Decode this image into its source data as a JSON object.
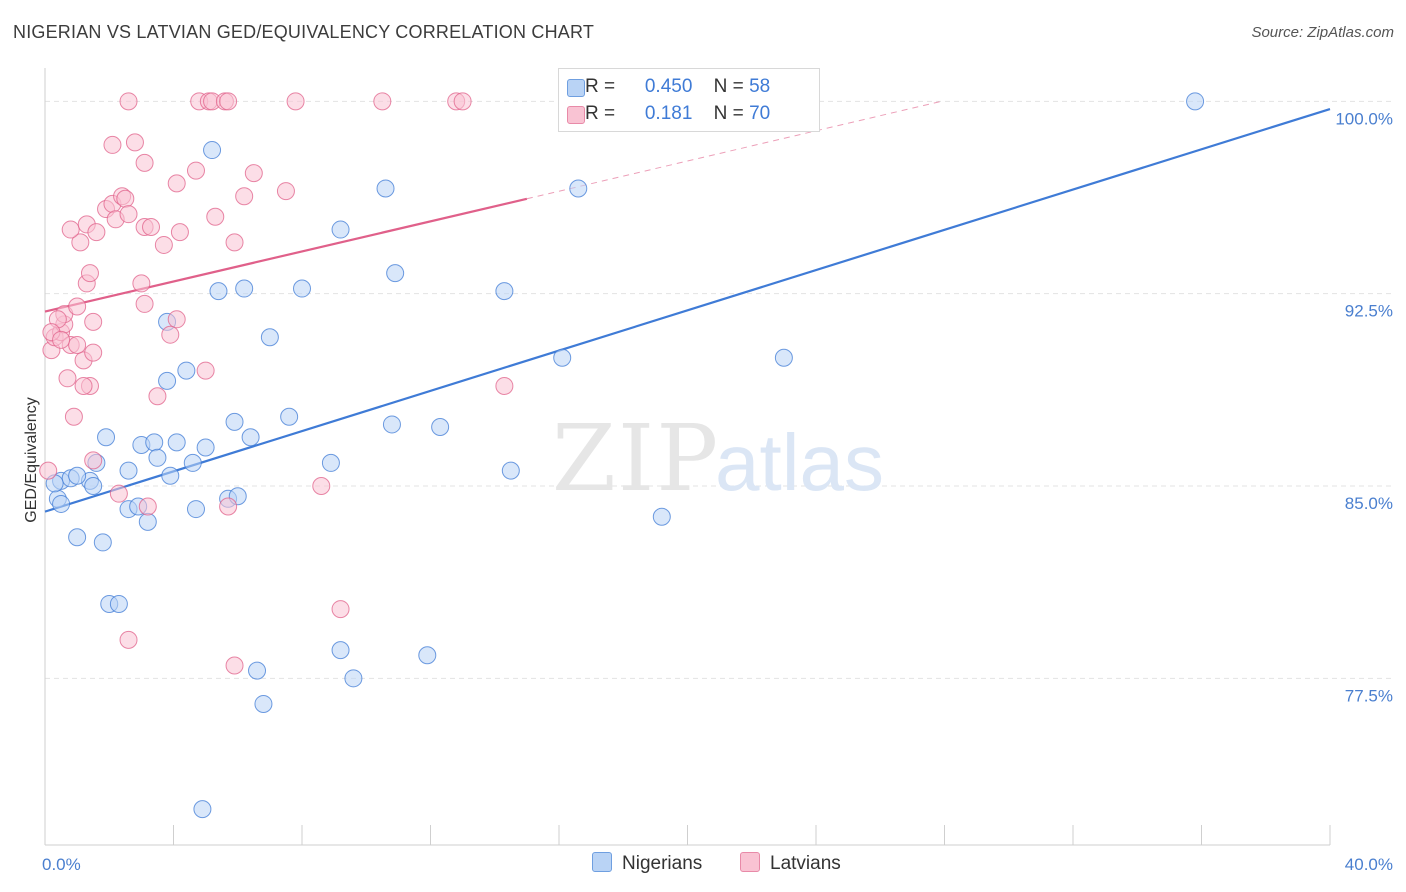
{
  "title": "NIGERIAN VS LATVIAN GED/EQUIVALENCY CORRELATION CHART",
  "source": "Source: ZipAtlas.com",
  "watermark": {
    "zip": "ZIP",
    "atlas": "atlas"
  },
  "legend": {
    "r_label": "R =",
    "n_label": "N =",
    "rows": [
      {
        "name": "Nigerians",
        "r": "0.450",
        "n": "58",
        "fill": "#b9d3f5",
        "stroke": "#6f9fe0"
      },
      {
        "name": "Latvians",
        "r": "0.181",
        "n": "70",
        "fill": "#f9c3d3",
        "stroke": "#e88aa8"
      }
    ]
  },
  "chart_data": {
    "type": "scatter",
    "title": "NIGERIAN VS LATVIAN GED/EQUIVALENCY CORRELATION CHART",
    "xlabel": "",
    "ylabel": "GED/Equivalency",
    "xlim": [
      0,
      40
    ],
    "ylim": [
      71,
      101.3
    ],
    "x_tick_labels": [
      {
        "value": 0,
        "label": "0.0%"
      },
      {
        "value": 40,
        "label": "40.0%"
      }
    ],
    "y_tick_labels": [
      {
        "value": 100,
        "label": "100.0%"
      },
      {
        "value": 92.5,
        "label": "92.5%"
      },
      {
        "value": 85,
        "label": "85.0%"
      },
      {
        "value": 77.5,
        "label": "77.5%"
      }
    ],
    "x_minor_ticks": [
      0,
      4,
      8,
      12,
      16,
      20,
      24,
      28,
      32,
      36,
      40
    ],
    "series": [
      {
        "name": "Nigerians",
        "color": "#3f7bd6",
        "fill": "#b9d3f5",
        "trend": {
          "x0": 0,
          "y0": 84,
          "x1": 40,
          "y1": 99.7
        },
        "points": [
          [
            0.5,
            85.2
          ],
          [
            0.4,
            84.5
          ],
          [
            1.4,
            85.2
          ],
          [
            0.8,
            85.3
          ],
          [
            1.5,
            85.0
          ],
          [
            1.9,
            86.9
          ],
          [
            2.6,
            85.6
          ],
          [
            2.6,
            84.1
          ],
          [
            2.9,
            84.2
          ],
          [
            3.2,
            83.6
          ],
          [
            3.0,
            86.6
          ],
          [
            3.4,
            86.7
          ],
          [
            3.5,
            86.1
          ],
          [
            3.9,
            85.4
          ],
          [
            4.1,
            86.7
          ],
          [
            4.6,
            85.9
          ],
          [
            5.0,
            86.5
          ],
          [
            4.7,
            84.1
          ],
          [
            5.7,
            84.5
          ],
          [
            6.0,
            84.6
          ],
          [
            5.9,
            87.5
          ],
          [
            6.4,
            86.9
          ],
          [
            7.6,
            87.7
          ],
          [
            8.9,
            85.9
          ],
          [
            10.8,
            87.4
          ],
          [
            12.3,
            87.3
          ],
          [
            14.5,
            85.6
          ],
          [
            3.8,
            89.1
          ],
          [
            4.4,
            89.5
          ],
          [
            3.8,
            91.4
          ],
          [
            5.4,
            92.6
          ],
          [
            6.2,
            92.7
          ],
          [
            7.0,
            90.8
          ],
          [
            8.0,
            92.7
          ],
          [
            9.2,
            95.0
          ],
          [
            10.9,
            93.3
          ],
          [
            10.6,
            96.6
          ],
          [
            14.3,
            92.6
          ],
          [
            16.1,
            90.0
          ],
          [
            23.0,
            90.0
          ],
          [
            16.6,
            96.6
          ],
          [
            5.2,
            98.1
          ],
          [
            19.2,
            83.8
          ],
          [
            1.0,
            83.0
          ],
          [
            1.8,
            82.8
          ],
          [
            2.0,
            80.4
          ],
          [
            2.3,
            80.4
          ],
          [
            9.2,
            78.6
          ],
          [
            11.9,
            78.4
          ],
          [
            6.6,
            77.8
          ],
          [
            9.6,
            77.5
          ],
          [
            6.8,
            76.5
          ],
          [
            4.9,
            72.4
          ],
          [
            35.8,
            100.0
          ],
          [
            0.5,
            84.3
          ],
          [
            0.3,
            85.1
          ],
          [
            1.0,
            85.4
          ],
          [
            1.6,
            85.9
          ]
        ]
      },
      {
        "name": "Latvians",
        "color": "#e0608a",
        "fill": "#f9c3d3",
        "trend": {
          "x0": 0,
          "y0": 91.8,
          "x1": 15.0,
          "y1": 96.2
        },
        "trend_ext": {
          "x0": 15.0,
          "y0": 96.2,
          "x1": 27.9,
          "y1": 100.0
        },
        "points": [
          [
            0.1,
            85.6
          ],
          [
            0.2,
            90.3
          ],
          [
            0.3,
            90.8
          ],
          [
            0.5,
            91.0
          ],
          [
            0.6,
            91.3
          ],
          [
            0.6,
            91.7
          ],
          [
            0.4,
            91.5
          ],
          [
            0.8,
            90.5
          ],
          [
            0.7,
            89.2
          ],
          [
            1.2,
            89.9
          ],
          [
            1.0,
            90.5
          ],
          [
            1.5,
            90.2
          ],
          [
            1.5,
            91.4
          ],
          [
            1.4,
            88.9
          ],
          [
            1.2,
            88.9
          ],
          [
            0.9,
            87.7
          ],
          [
            1.3,
            92.9
          ],
          [
            1.4,
            93.3
          ],
          [
            1.1,
            94.5
          ],
          [
            0.8,
            95.0
          ],
          [
            1.3,
            95.2
          ],
          [
            1.6,
            94.9
          ],
          [
            1.9,
            95.8
          ],
          [
            2.1,
            96.0
          ],
          [
            2.2,
            95.4
          ],
          [
            2.4,
            96.3
          ],
          [
            2.5,
            96.2
          ],
          [
            2.6,
            95.6
          ],
          [
            3.1,
            95.1
          ],
          [
            3.3,
            95.1
          ],
          [
            3.7,
            94.4
          ],
          [
            4.2,
            94.9
          ],
          [
            4.1,
            96.8
          ],
          [
            4.7,
            97.3
          ],
          [
            5.3,
            95.5
          ],
          [
            5.9,
            94.5
          ],
          [
            6.2,
            96.3
          ],
          [
            6.5,
            97.2
          ],
          [
            7.5,
            96.5
          ],
          [
            2.1,
            98.3
          ],
          [
            2.8,
            98.4
          ],
          [
            3.1,
            97.6
          ],
          [
            3.0,
            92.9
          ],
          [
            3.1,
            92.1
          ],
          [
            4.1,
            91.5
          ],
          [
            3.9,
            90.9
          ],
          [
            3.5,
            88.5
          ],
          [
            5.0,
            89.5
          ],
          [
            8.6,
            85.0
          ],
          [
            2.3,
            84.7
          ],
          [
            3.2,
            84.2
          ],
          [
            5.7,
            84.2
          ],
          [
            9.2,
            80.2
          ],
          [
            2.6,
            79.0
          ],
          [
            5.9,
            78.0
          ],
          [
            14.3,
            88.9
          ],
          [
            2.6,
            100.0
          ],
          [
            4.8,
            100.0
          ],
          [
            5.1,
            100.0
          ],
          [
            5.2,
            100.0
          ],
          [
            5.6,
            100.0
          ],
          [
            5.7,
            100.0
          ],
          [
            7.8,
            100.0
          ],
          [
            10.5,
            100.0
          ],
          [
            12.8,
            100.0
          ],
          [
            13.0,
            100.0
          ],
          [
            0.2,
            91.0
          ],
          [
            1.0,
            92.0
          ],
          [
            0.5,
            90.7
          ],
          [
            1.5,
            86.0
          ]
        ]
      }
    ]
  }
}
